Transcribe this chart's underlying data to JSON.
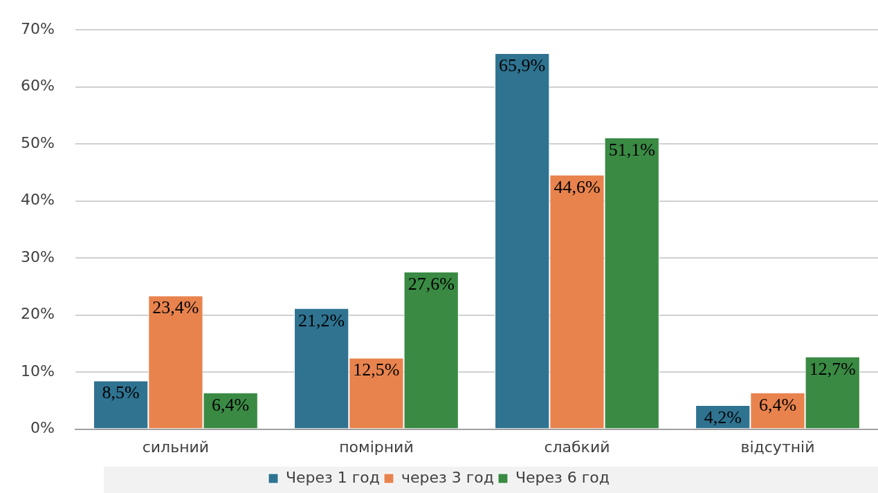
{
  "chart_data": {
    "type": "bar",
    "categories": [
      "сильний",
      "помірний",
      "слабкий",
      "відсутній"
    ],
    "series": [
      {
        "name": "Через 1 год",
        "color": "#2f7391",
        "values": [
          8.5,
          21.2,
          65.9,
          4.2
        ],
        "value_labels": [
          "8,5%",
          "21,2%",
          "65,9%",
          "4,2%"
        ]
      },
      {
        "name": "через 3 год",
        "color": "#e8834e",
        "values": [
          23.4,
          12.5,
          44.6,
          6.4
        ],
        "value_labels": [
          "23,4%",
          "12,5%",
          "44,6%",
          "6,4%"
        ]
      },
      {
        "name": "Через 6 год",
        "color": "#3a8a44",
        "values": [
          6.4,
          27.6,
          51.1,
          12.7
        ],
        "value_labels": [
          "6,4%",
          "27,6%",
          "51,1%",
          "12,7%"
        ]
      }
    ],
    "ylim": [
      0,
      70
    ],
    "yticks": [
      {
        "value": 0,
        "label": "0%"
      },
      {
        "value": 10,
        "label": "10%"
      },
      {
        "value": 20,
        "label": "20%"
      },
      {
        "value": 30,
        "label": "30%"
      },
      {
        "value": 40,
        "label": "40%"
      },
      {
        "value": 50,
        "label": "50%"
      },
      {
        "value": 60,
        "label": "60%"
      },
      {
        "value": 70,
        "label": "70%"
      }
    ],
    "grid": "y",
    "legend": "bottom"
  }
}
